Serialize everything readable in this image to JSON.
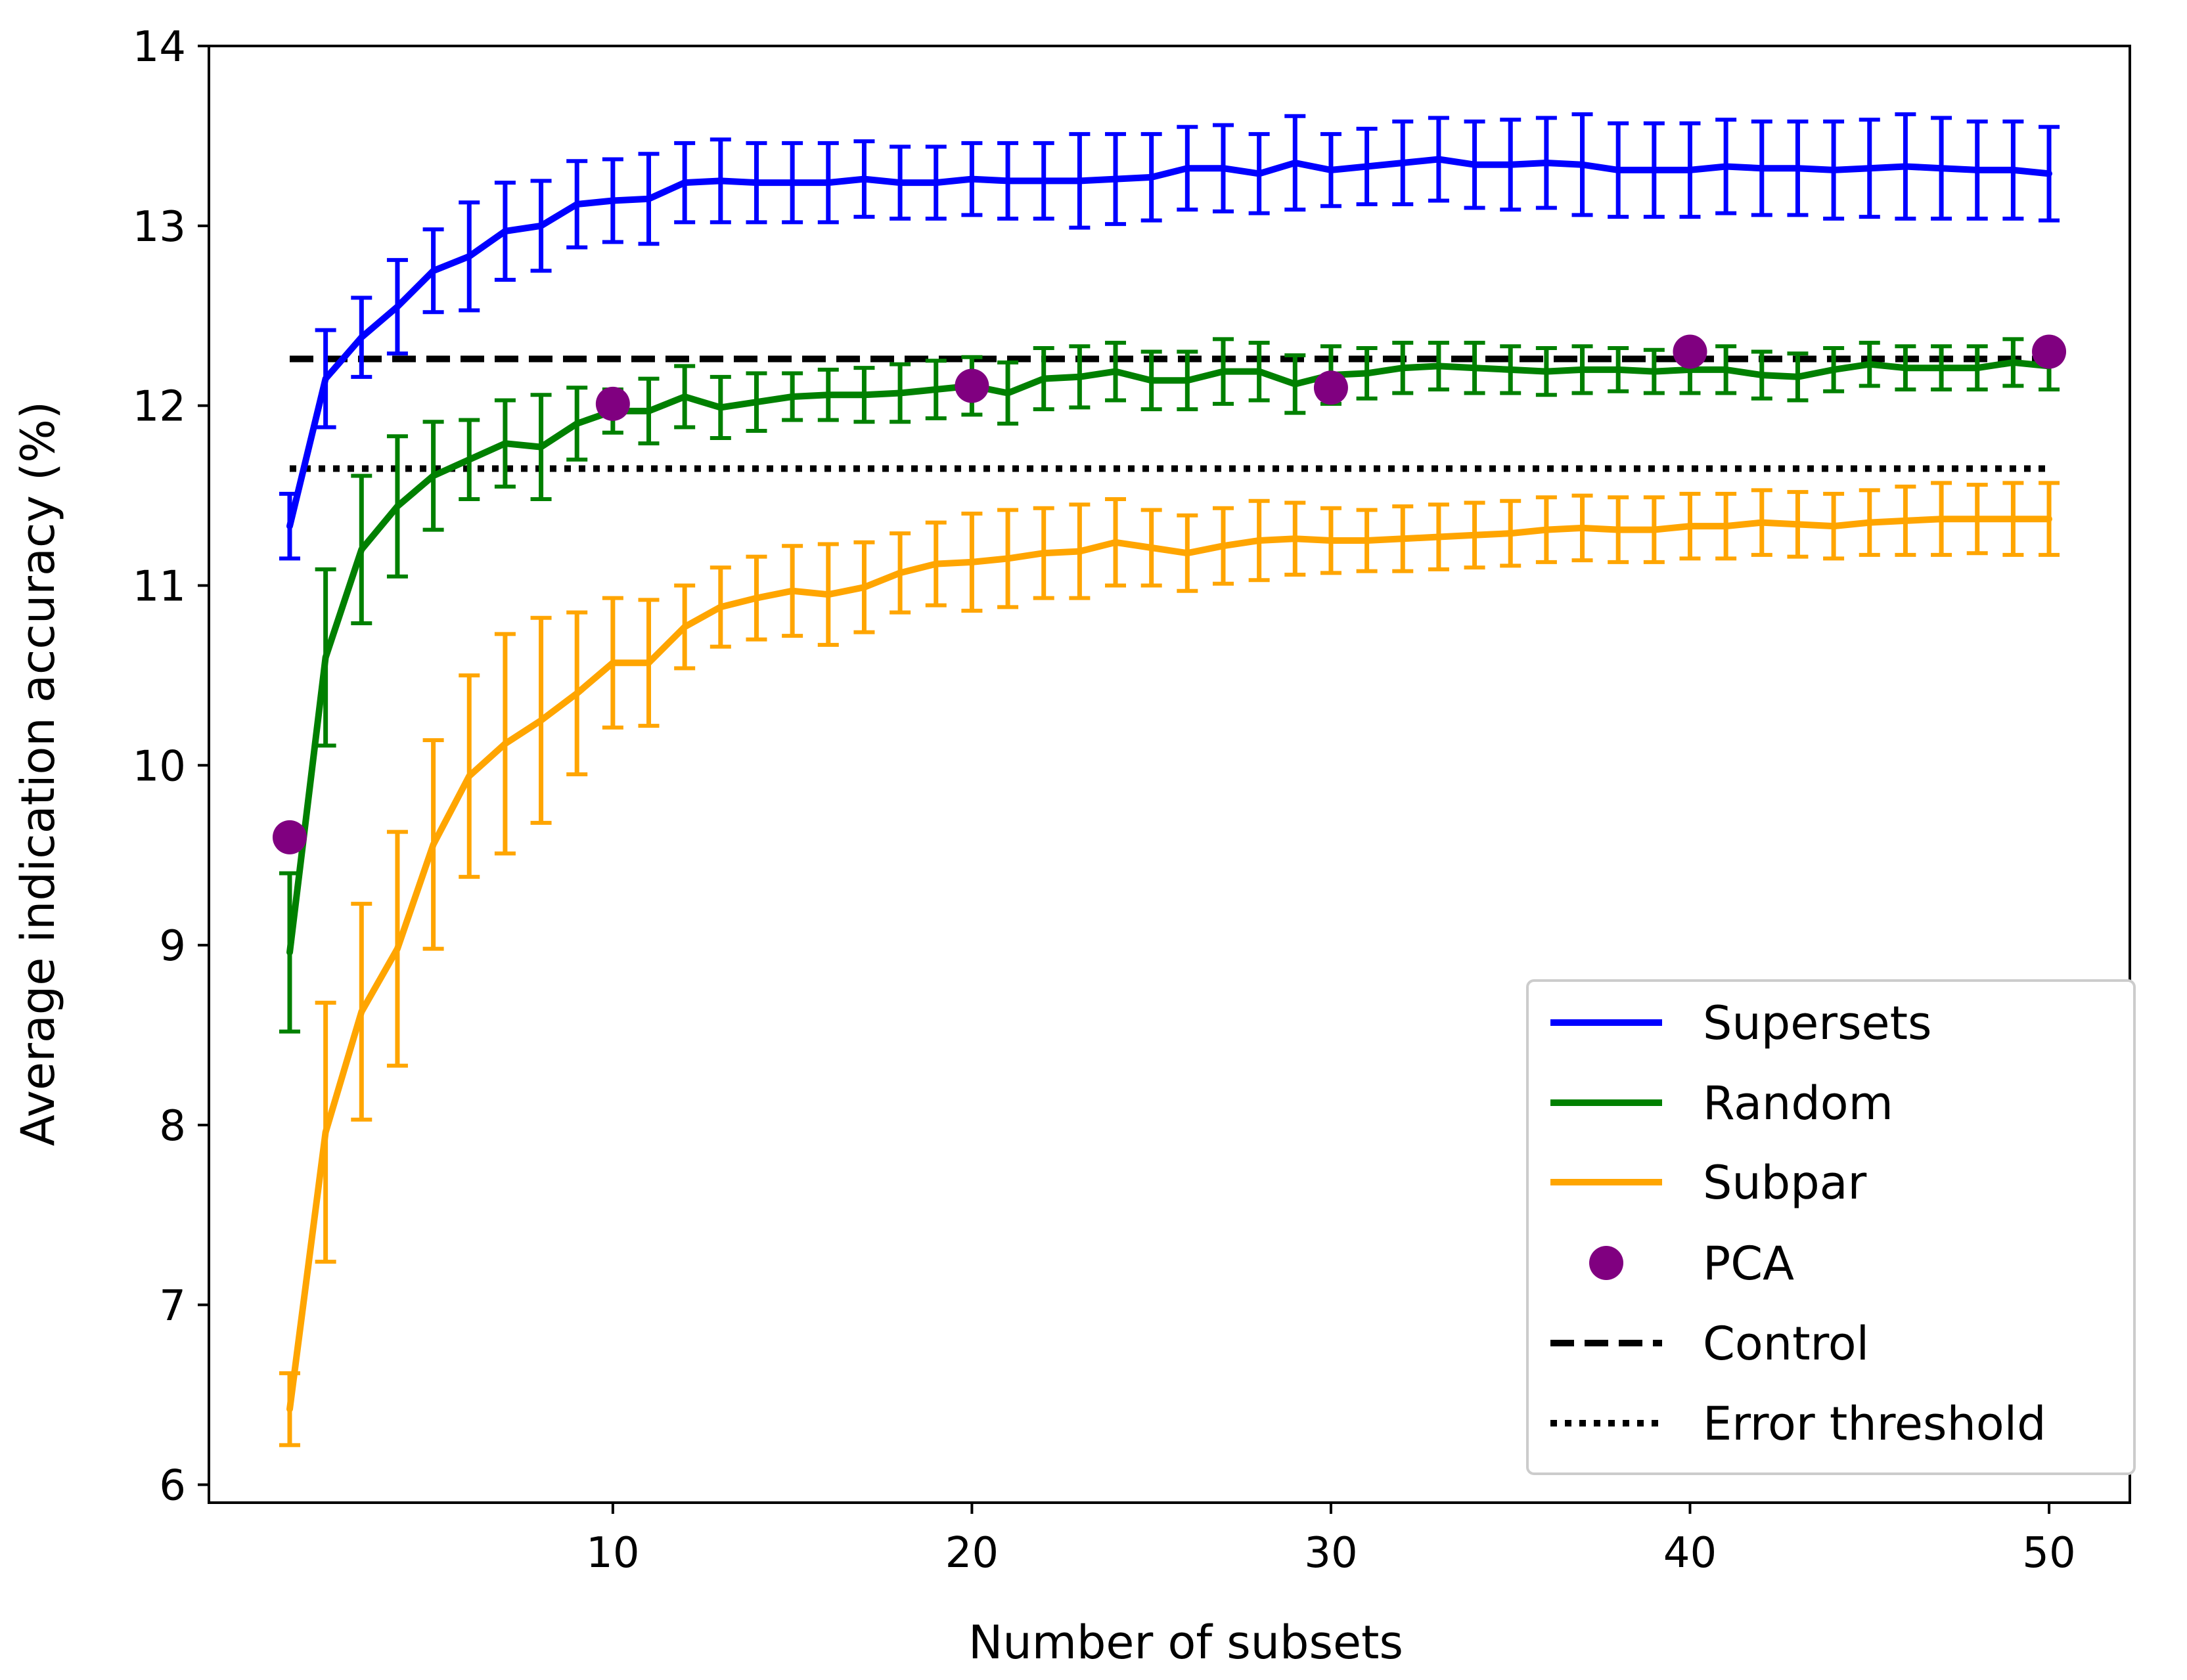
{
  "chart_data": {
    "type": "line",
    "title": "",
    "xlabel": "Number of subsets",
    "ylabel": "Average indication accuracy (%)",
    "xlim": [
      -1.25,
      52.25
    ],
    "ylim": [
      5.9,
      14.0
    ],
    "xticks": [
      10,
      20,
      30,
      40,
      50
    ],
    "yticks": [
      6,
      7,
      8,
      9,
      10,
      11,
      12,
      13,
      14
    ],
    "grid": false,
    "legend_position": "lower-right",
    "x": [
      1,
      2,
      3,
      4,
      5,
      6,
      7,
      8,
      9,
      10,
      11,
      12,
      13,
      14,
      15,
      16,
      17,
      18,
      19,
      20,
      21,
      22,
      23,
      24,
      25,
      26,
      27,
      28,
      29,
      30,
      31,
      32,
      33,
      34,
      35,
      36,
      37,
      38,
      39,
      40,
      41,
      42,
      43,
      44,
      45,
      46,
      47,
      48,
      49,
      50
    ],
    "series": [
      {
        "name": "Supersets",
        "color": "#0000ff",
        "values": [
          11.33,
          12.15,
          12.38,
          12.55,
          12.75,
          12.83,
          12.97,
          13.0,
          13.12,
          13.14,
          13.15,
          13.24,
          13.25,
          13.24,
          13.24,
          13.24,
          13.26,
          13.24,
          13.24,
          13.26,
          13.25,
          13.25,
          13.25,
          13.26,
          13.27,
          13.32,
          13.32,
          13.29,
          13.35,
          13.31,
          13.33,
          13.35,
          13.37,
          13.34,
          13.34,
          13.35,
          13.34,
          13.31,
          13.31,
          13.31,
          13.33,
          13.32,
          13.32,
          13.31,
          13.32,
          13.33,
          13.32,
          13.31,
          13.31,
          13.29
        ],
        "errors": [
          0.18,
          0.27,
          0.22,
          0.26,
          0.23,
          0.3,
          0.27,
          0.25,
          0.24,
          0.23,
          0.25,
          0.22,
          0.23,
          0.22,
          0.22,
          0.22,
          0.21,
          0.2,
          0.2,
          0.2,
          0.21,
          0.21,
          0.26,
          0.25,
          0.24,
          0.23,
          0.24,
          0.22,
          0.26,
          0.2,
          0.21,
          0.23,
          0.23,
          0.24,
          0.25,
          0.25,
          0.28,
          0.26,
          0.26,
          0.26,
          0.26,
          0.26,
          0.26,
          0.27,
          0.27,
          0.29,
          0.28,
          0.27,
          0.27,
          0.26
        ]
      },
      {
        "name": "Random",
        "color": "#008000",
        "values": [
          8.96,
          10.6,
          11.2,
          11.44,
          11.61,
          11.7,
          11.79,
          11.77,
          11.9,
          11.97,
          11.97,
          12.05,
          11.99,
          12.02,
          12.05,
          12.06,
          12.06,
          12.07,
          12.09,
          12.11,
          12.07,
          12.15,
          12.16,
          12.19,
          12.14,
          12.14,
          12.19,
          12.19,
          12.12,
          12.17,
          12.18,
          12.21,
          12.22,
          12.21,
          12.2,
          12.19,
          12.2,
          12.2,
          12.19,
          12.2,
          12.2,
          12.17,
          12.16,
          12.2,
          12.23,
          12.21,
          12.21,
          12.21,
          12.24,
          12.22
        ],
        "errors": [
          0.44,
          0.49,
          0.41,
          0.39,
          0.3,
          0.22,
          0.24,
          0.29,
          0.2,
          0.12,
          0.18,
          0.17,
          0.17,
          0.16,
          0.13,
          0.14,
          0.15,
          0.16,
          0.16,
          0.16,
          0.17,
          0.17,
          0.17,
          0.16,
          0.16,
          0.16,
          0.18,
          0.16,
          0.16,
          0.16,
          0.14,
          0.14,
          0.13,
          0.14,
          0.13,
          0.13,
          0.13,
          0.12,
          0.12,
          0.13,
          0.13,
          0.13,
          0.13,
          0.12,
          0.12,
          0.12,
          0.12,
          0.12,
          0.13,
          0.13
        ]
      },
      {
        "name": "Subpar",
        "color": "#ffa500",
        "values": [
          6.42,
          7.96,
          8.63,
          8.98,
          9.56,
          9.94,
          10.12,
          10.25,
          10.4,
          10.57,
          10.57,
          10.77,
          10.88,
          10.93,
          10.97,
          10.95,
          10.99,
          11.07,
          11.12,
          11.13,
          11.15,
          11.18,
          11.19,
          11.24,
          11.21,
          11.18,
          11.22,
          11.25,
          11.26,
          11.25,
          11.25,
          11.26,
          11.27,
          11.28,
          11.29,
          11.31,
          11.32,
          11.31,
          11.31,
          11.33,
          11.33,
          11.35,
          11.34,
          11.33,
          11.35,
          11.36,
          11.37,
          11.37,
          11.37,
          11.37
        ],
        "errors": [
          0.2,
          0.72,
          0.6,
          0.65,
          0.58,
          0.56,
          0.61,
          0.57,
          0.45,
          0.36,
          0.35,
          0.23,
          0.22,
          0.23,
          0.25,
          0.28,
          0.25,
          0.22,
          0.23,
          0.27,
          0.27,
          0.25,
          0.26,
          0.24,
          0.21,
          0.21,
          0.21,
          0.22,
          0.2,
          0.18,
          0.17,
          0.18,
          0.18,
          0.18,
          0.18,
          0.18,
          0.18,
          0.18,
          0.18,
          0.18,
          0.18,
          0.18,
          0.18,
          0.18,
          0.18,
          0.19,
          0.2,
          0.19,
          0.2,
          0.2
        ]
      }
    ],
    "pca": {
      "name": "PCA",
      "color": "#800080",
      "x": [
        1,
        10,
        20,
        30,
        40,
        50
      ],
      "values": [
        9.6,
        12.01,
        12.11,
        12.1,
        12.3,
        12.3
      ]
    },
    "control": {
      "name": "Control",
      "color": "#000000",
      "style": "dashed",
      "value": 12.26,
      "x_range": [
        1,
        50
      ]
    },
    "error_threshold": {
      "name": "Error threshold",
      "color": "#000000",
      "style": "dotted",
      "value": 11.65,
      "x_range": [
        1,
        50
      ]
    }
  }
}
